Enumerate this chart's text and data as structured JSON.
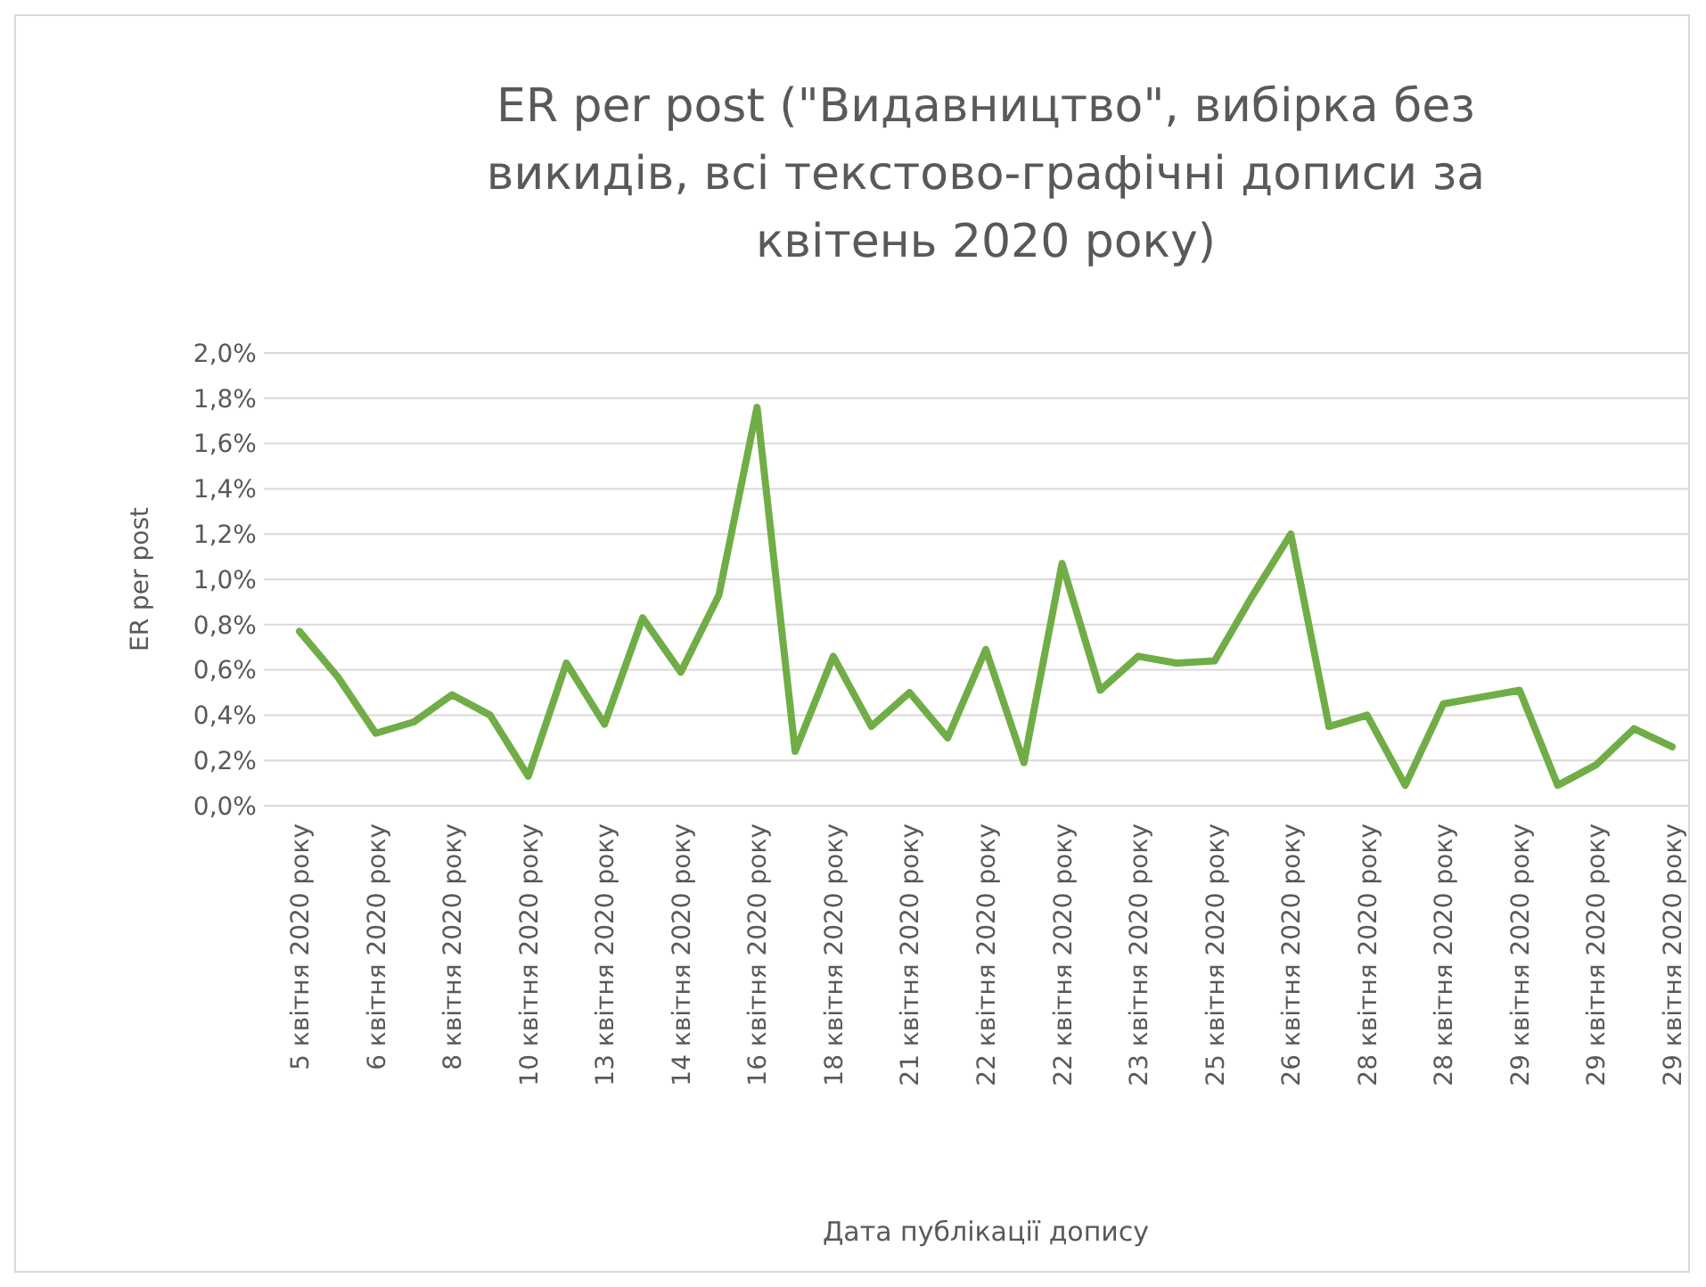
{
  "chart_data": {
    "type": "line",
    "title": "ER per post (\"Видавництво\", вибірка без викидів, всі текстово-графічні дописи за квітень 2020 року)",
    "xlabel": "Дата публікації допису",
    "ylabel": "ER per post",
    "categories": [
      "5 квітня 2020 року",
      null,
      "6 квітня 2020 року",
      null,
      "8 квітня 2020 року",
      null,
      "10 квітня 2020 року",
      null,
      "13 квітня 2020 року",
      null,
      "14 квітня 2020 року",
      null,
      "16 квітня 2020 року",
      null,
      "18 квітня 2020 року",
      null,
      "21 квітня 2020 року",
      null,
      "22 квітня 2020 року",
      null,
      "22 квітня 2020 року",
      null,
      "23 квітня 2020 року",
      null,
      "25 квітня 2020 року",
      null,
      "26 квітня 2020 року",
      null,
      "28 квітня 2020 року",
      null,
      "28 квітня 2020 року",
      null,
      "29 квітня 2020 року",
      null,
      "29 квітня 2020 року",
      null,
      "29 квітня 2020 року"
    ],
    "series": [
      {
        "color": "#70ad47",
        "values": [
          0.77,
          0.57,
          0.32,
          0.37,
          0.49,
          0.4,
          0.13,
          0.63,
          0.36,
          0.83,
          0.59,
          0.93,
          1.76,
          0.24,
          0.66,
          0.35,
          0.5,
          0.3,
          0.69,
          0.19,
          1.07,
          0.51,
          0.66,
          0.63,
          0.64,
          0.93,
          1.2,
          0.35,
          0.4,
          0.09,
          0.45,
          0.48,
          0.51,
          0.09,
          0.18,
          0.34,
          0.26
        ]
      }
    ],
    "ylim": [
      0,
      2
    ],
    "yticks": [
      {
        "value": 0,
        "label": "0,0%"
      },
      {
        "value": 0.2,
        "label": "0,2%"
      },
      {
        "value": 0.4,
        "label": "0,4%"
      },
      {
        "value": 0.6,
        "label": "0,6%"
      },
      {
        "value": 0.8,
        "label": "0,8%"
      },
      {
        "value": 1,
        "label": "1,0%"
      },
      {
        "value": 1.2,
        "label": "1,2%"
      },
      {
        "value": 1.4,
        "label": "1,4%"
      },
      {
        "value": 1.6,
        "label": "1,6%"
      },
      {
        "value": 1.8,
        "label": "1,8%"
      },
      {
        "value": 2,
        "label": "2,0%"
      }
    ],
    "grid": "y",
    "marker": "none",
    "line_style": "solid"
  }
}
